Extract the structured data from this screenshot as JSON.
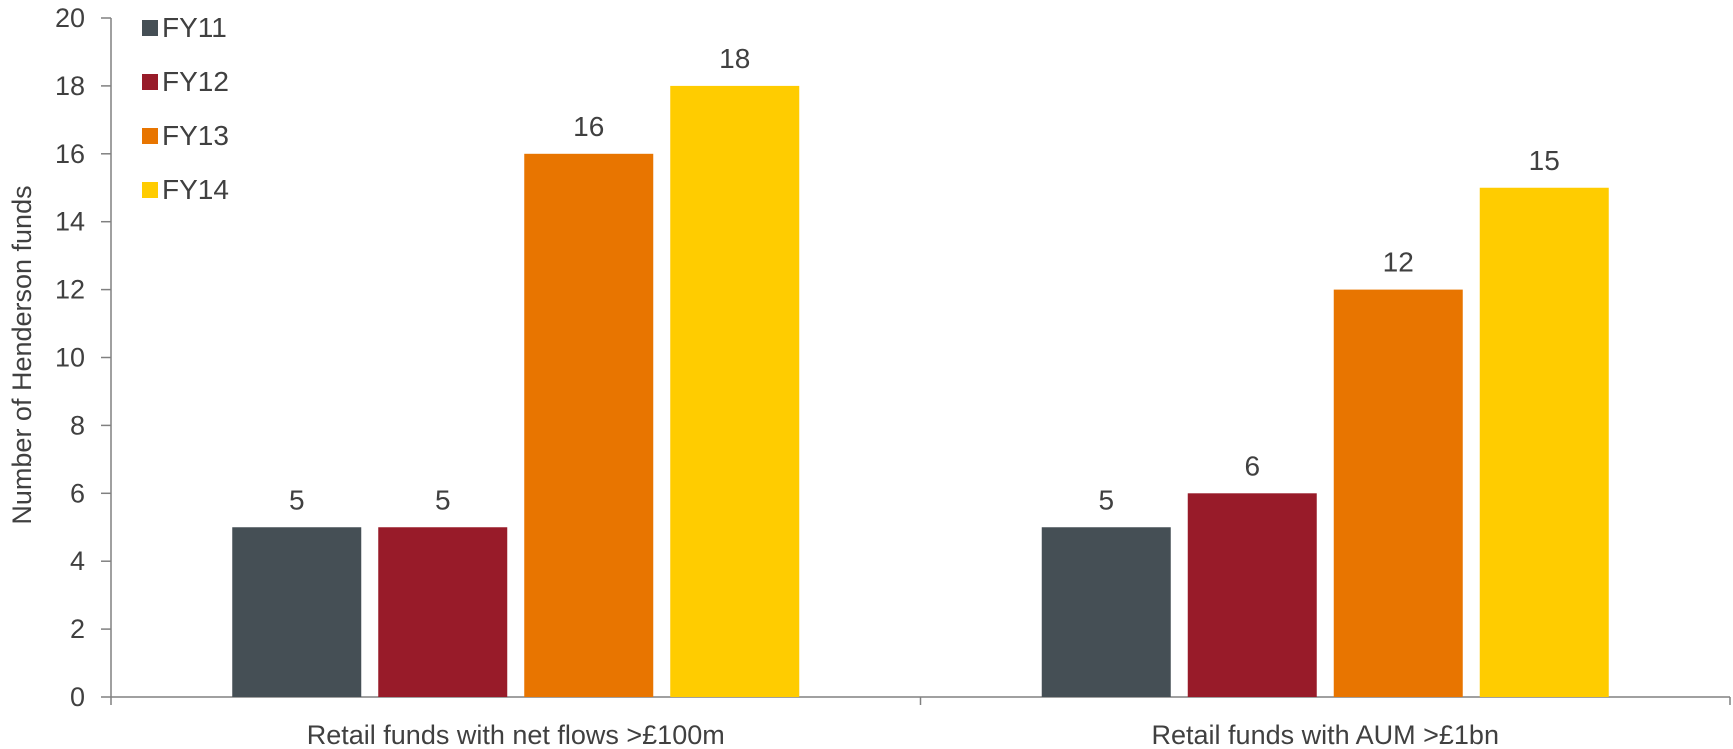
{
  "chart_data": {
    "type": "bar",
    "categories": [
      "Retail funds with net flows >£100m",
      "Retail funds with AUM >£1bn"
    ],
    "series": [
      {
        "name": "FY11",
        "values": [
          5,
          5
        ],
        "color": "#454f55"
      },
      {
        "name": "FY12",
        "values": [
          5,
          6
        ],
        "color": "#981b29"
      },
      {
        "name": "FY13",
        "values": [
          16,
          12
        ],
        "color": "#e87500"
      },
      {
        "name": "FY14",
        "values": [
          18,
          15
        ],
        "color": "#ffcc00"
      }
    ],
    "title": "",
    "xlabel": "",
    "ylabel": "Number of Henderson funds",
    "ylim": [
      0,
      20
    ],
    "yticks": [
      "0",
      "2",
      "4",
      "6",
      "8",
      "10",
      "12",
      "14",
      "16",
      "18",
      "20"
    ],
    "grid": false,
    "legend_position": "top-left",
    "data_labels": true
  }
}
